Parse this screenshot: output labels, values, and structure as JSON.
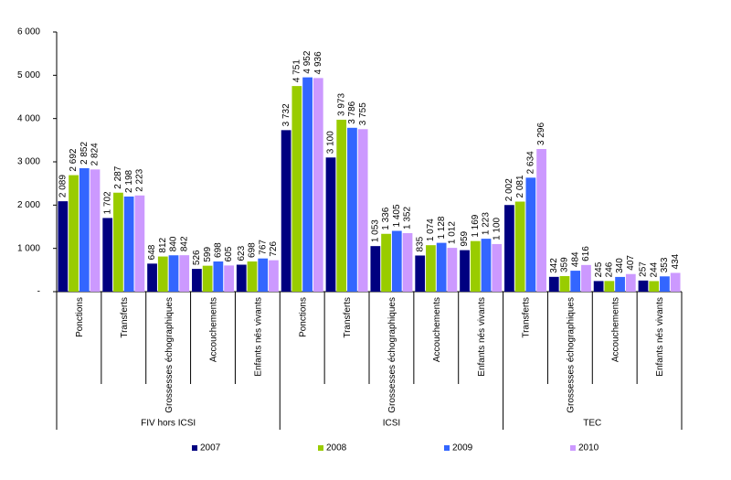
{
  "chart_data": {
    "type": "bar",
    "groups": [
      {
        "name": "FIV hors ICSI",
        "categories": [
          "Ponctions",
          "Transferts",
          "Grossesses échographiques",
          "Accouchements",
          "Enfants nés vivants"
        ]
      },
      {
        "name": "ICSI",
        "categories": [
          "Ponctions",
          "Transferts",
          "Grossesses échographiques",
          "Accouchements",
          "Enfants nés vivants"
        ]
      },
      {
        "name": "TEC",
        "categories": [
          "Transferts",
          "Grossesses échographiques",
          "Accouchements",
          "Enfants nés vivants"
        ]
      }
    ],
    "series": [
      {
        "name": "2007",
        "color": "#000080",
        "values": [
          2089,
          1702,
          648,
          526,
          623,
          3732,
          3100,
          1053,
          835,
          959,
          2002,
          342,
          245,
          257
        ],
        "value_labels": [
          "2 089",
          "1 702",
          "648",
          "526",
          "623",
          "3 732",
          "3 100",
          "1 053",
          "835",
          "959",
          "2 002",
          "342",
          "245",
          "257"
        ]
      },
      {
        "name": "2008",
        "color": "#99cc00",
        "values": [
          2692,
          2287,
          812,
          599,
          698,
          4751,
          3973,
          1336,
          1074,
          1169,
          2081,
          359,
          246,
          244
        ],
        "value_labels": [
          "2 692",
          "2 287",
          "812",
          "599",
          "698",
          "4 751",
          "3 973",
          "1 336",
          "1 074",
          "1 169",
          "2 081",
          "359",
          "246",
          "244"
        ]
      },
      {
        "name": "2009",
        "color": "#3366ff",
        "values": [
          2852,
          2198,
          840,
          698,
          767,
          4952,
          3786,
          1405,
          1128,
          1223,
          2634,
          484,
          340,
          353
        ],
        "value_labels": [
          "2 852",
          "2 198",
          "840",
          "698",
          "767",
          "4 952",
          "3 786",
          "1 405",
          "1 128",
          "1 223",
          "2 634",
          "484",
          "340",
          "353"
        ]
      },
      {
        "name": "2010",
        "color": "#cc99ff",
        "values": [
          2824,
          2223,
          842,
          605,
          726,
          4936,
          3755,
          1352,
          1012,
          1100,
          3296,
          616,
          407,
          434
        ],
        "value_labels": [
          "2 824",
          "2 223",
          "842",
          "605",
          "726",
          "4 936",
          "3 755",
          "1 352",
          "1 012",
          "1 100",
          "3 296",
          "616",
          "407",
          "434"
        ]
      }
    ],
    "ylim": [
      0,
      6000
    ],
    "yticks": [
      {
        "value": 0,
        "label": "-"
      },
      {
        "value": 1000,
        "label": "1 000"
      },
      {
        "value": 2000,
        "label": "2 000"
      },
      {
        "value": 3000,
        "label": "3 000"
      },
      {
        "value": 4000,
        "label": "4 000"
      },
      {
        "value": 5000,
        "label": "5 000"
      },
      {
        "value": 6000,
        "label": "6 000"
      }
    ],
    "legend": "bottom"
  }
}
